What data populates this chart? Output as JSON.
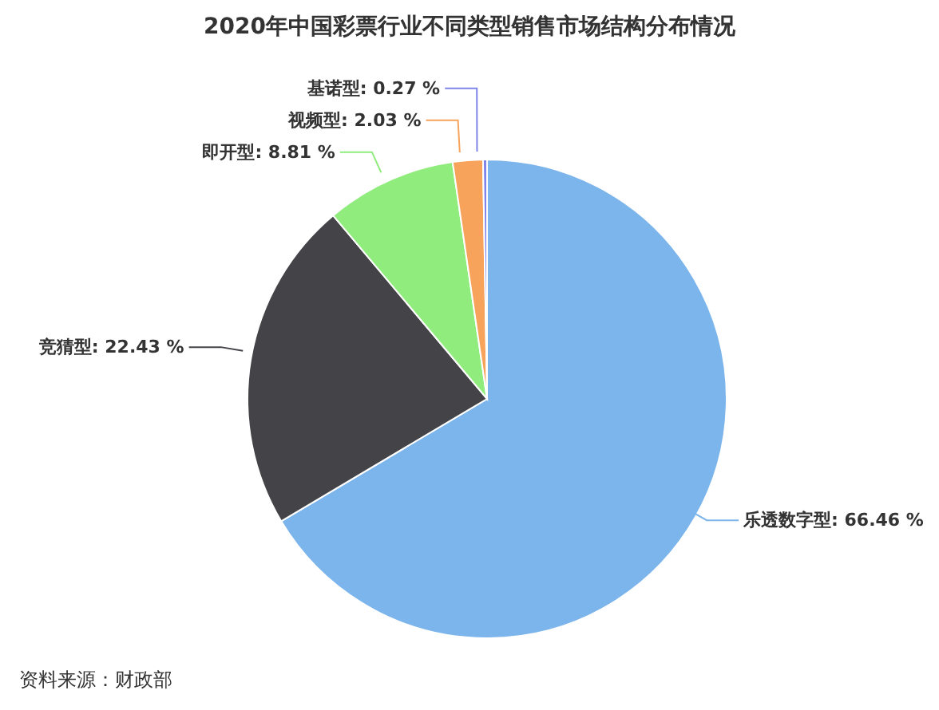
{
  "chart_data": {
    "type": "pie",
    "title": "2020年中国彩票行业不同类型销售市场结构分布情况",
    "categories": [
      "乐透数字型",
      "竞猜型",
      "即开型",
      "视频型",
      "基诺型"
    ],
    "values": [
      66.46,
      22.43,
      8.81,
      2.03,
      0.27
    ],
    "value_labels": [
      "66.46 %",
      "22.43 %",
      "8.81 %",
      "2.03 %",
      "0.27 %"
    ],
    "colors": [
      "#7cb5ec",
      "#434348",
      "#90ed7d",
      "#f7a35c",
      "#8085e9"
    ],
    "legend": false,
    "annotations": [
      "资料来源：财政部"
    ]
  }
}
